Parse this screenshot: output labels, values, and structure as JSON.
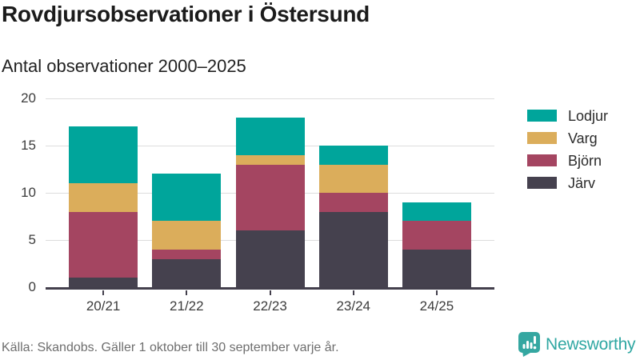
{
  "header": {
    "title": "Rovdjursobservationer i Östersund",
    "subtitle": "Antal observationer 2000–2025"
  },
  "chart_data": {
    "type": "bar",
    "stacked": true,
    "title": "Rovdjursobservationer i Östersund",
    "subtitle": "Antal observationer 2000–2025",
    "categories": [
      "20/21",
      "21/22",
      "22/23",
      "23/24",
      "24/25"
    ],
    "series": [
      {
        "name": "Lodjur",
        "color": "#00A59B",
        "values": [
          6,
          5,
          4,
          2,
          2
        ]
      },
      {
        "name": "Varg",
        "color": "#DBAD5B",
        "values": [
          3,
          3,
          1,
          3,
          0
        ]
      },
      {
        "name": "Björn",
        "color": "#A44561",
        "values": [
          7,
          1,
          7,
          2,
          3
        ]
      },
      {
        "name": "Järv",
        "color": "#45414E",
        "values": [
          1,
          3,
          6,
          8,
          4
        ]
      }
    ],
    "stack_order_bottom_to_top": [
      "Järv",
      "Björn",
      "Varg",
      "Lodjur"
    ],
    "xlabel": "",
    "ylabel": "",
    "ylim": [
      0,
      20
    ],
    "yticks": [
      0,
      5,
      10,
      15,
      20
    ],
    "grid": true,
    "legend_position": "right"
  },
  "footer": {
    "source": "Källa: Skandobs. Gäller 1 oktober till 30 september varje år.",
    "brand": "Newsworthy"
  },
  "colors": {
    "accent_teal": "#00A59B",
    "brand_teal": "#2FA7A2",
    "axis": "#433F4C",
    "gridline": "#DDDDDD",
    "text_dark": "#1B1B1B",
    "text_muted": "#6E6E6E"
  }
}
